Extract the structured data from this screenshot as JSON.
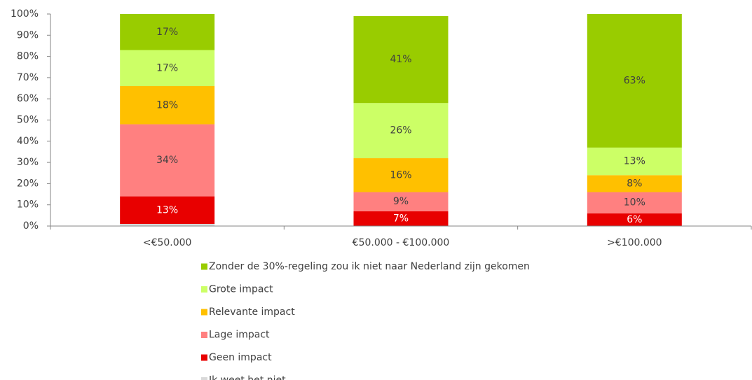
{
  "chart_data": {
    "type": "stacked_bar",
    "categories": [
      "<€50.000",
      "€50.000 - €100.000",
      ">€100.000"
    ],
    "series": [
      {
        "name": "Ik weet het niet",
        "color": "#d9d9d9",
        "values": [
          1,
          0,
          0
        ]
      },
      {
        "name": "Geen impact",
        "color": "#e80000",
        "label_color": "#ffffff",
        "values": [
          13,
          7,
          6
        ],
        "value_labels": [
          "13%",
          "7%",
          "6%"
        ]
      },
      {
        "name": "Lage impact",
        "color": "#ff8080",
        "label_color": "#404040",
        "values": [
          34,
          9,
          10
        ],
        "value_labels": [
          "34%",
          "9%",
          "10%"
        ]
      },
      {
        "name": "Relevante impact",
        "color": "#ffc000",
        "label_color": "#404040",
        "values": [
          18,
          16,
          8
        ],
        "value_labels": [
          "18%",
          "16%",
          "8%"
        ]
      },
      {
        "name": "Grote impact",
        "color": "#ccff66",
        "label_color": "#404040",
        "values": [
          17,
          26,
          13
        ],
        "value_labels": [
          "17%",
          "26%",
          "13%"
        ]
      },
      {
        "name": "Zonder de 30%-regeling zou ik niet naar Nederland zijn gekomen",
        "color": "#99cc00",
        "label_color": "#404040",
        "values": [
          17,
          41,
          63
        ],
        "value_labels": [
          "17%",
          "41%",
          "63%"
        ]
      }
    ],
    "ylim": [
      0,
      100
    ],
    "yticks": [
      {
        "value": 0,
        "label": "0%"
      },
      {
        "value": 10,
        "label": "10%"
      },
      {
        "value": 20,
        "label": "20%"
      },
      {
        "value": 30,
        "label": "30%"
      },
      {
        "value": 40,
        "label": "40%"
      },
      {
        "value": 50,
        "label": "50%"
      },
      {
        "value": 60,
        "label": "60%"
      },
      {
        "value": 70,
        "label": "70%"
      },
      {
        "value": 80,
        "label": "80%"
      },
      {
        "value": 90,
        "label": "90%"
      },
      {
        "value": 100,
        "label": "100%"
      }
    ],
    "grid": false,
    "legend": "bottom"
  }
}
